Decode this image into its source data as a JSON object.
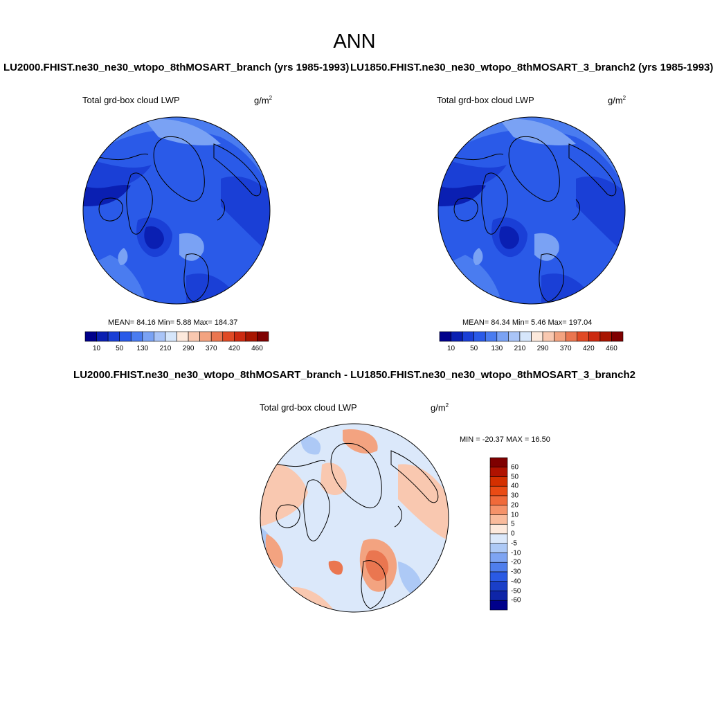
{
  "header": {
    "title": "ANN",
    "case_a": "LU2000.FHIST.ne30_ne30_wtopo_8thMOSART_branch (yrs 1985-1993)",
    "case_b": "LU1850.FHIST.ne30_ne30_wtopo_8thMOSART_3_branch2 (yrs 1985-1993)",
    "diff_title": "LU2000.FHIST.ne30_ne30_wtopo_8thMOSART_branch - LU1850.FHIST.ne30_ne30_wtopo_8thMOSART_3_branch2"
  },
  "panels": {
    "a": {
      "variable": "Total grd-box cloud LWP",
      "units_base": "g/m",
      "units_exp": "2",
      "stats": "MEAN=  84.16  Min=    5.88  Max= 184.37"
    },
    "b": {
      "variable": "Total grd-box cloud LWP",
      "units_base": "g/m",
      "units_exp": "2",
      "stats": "MEAN=  84.34  Min=    5.46  Max= 197.04"
    },
    "diff": {
      "variable": "Total grd-box cloud LWP",
      "units_base": "g/m",
      "units_exp": "2",
      "stats": "MIN = -20.37 MAX =  16.50"
    }
  },
  "colorbar_abs": {
    "colors": [
      "#00008b",
      "#0a1fb2",
      "#1a3fd6",
      "#2a5ae8",
      "#4a7cf0",
      "#7aa2f4",
      "#a9c4f7",
      "#d6e6fb",
      "#fde9dc",
      "#f9c8b0",
      "#f3a380",
      "#ea7650",
      "#e04a25",
      "#cc2a10",
      "#a81500",
      "#7f0000"
    ],
    "labels": [
      "10",
      "50",
      "130",
      "210",
      "290",
      "370",
      "420",
      "460"
    ]
  },
  "colorbar_diff": {
    "colors": [
      "#7f0000",
      "#b01200",
      "#d43000",
      "#ea4b14",
      "#f06a3a",
      "#f59269",
      "#f9bb9c",
      "#fde9dc",
      "#dbe8fa",
      "#adc9f6",
      "#7ea4f2",
      "#4f7eec",
      "#2a5ae4",
      "#1a3fc8",
      "#0e25a8",
      "#00008b"
    ],
    "labels": [
      "60",
      "50",
      "40",
      "30",
      "20",
      "10",
      "5",
      "0",
      "-5",
      "-10",
      "-20",
      "-30",
      "-40",
      "-50",
      "-60"
    ]
  },
  "map_colors": {
    "ocean_blue": "#2a5ae8",
    "deep_blue": "#1a3fd6",
    "light_blue": "#4a7cf0",
    "pale_blue": "#7aa2f4",
    "darkest": "#0a1fb2",
    "diff_base": "#dbe8fa",
    "diff_warm": "#f9c8b0",
    "diff_warm2": "#f3a380",
    "diff_cool": "#adc9f6",
    "diff_cool2": "#7ea4f2"
  }
}
